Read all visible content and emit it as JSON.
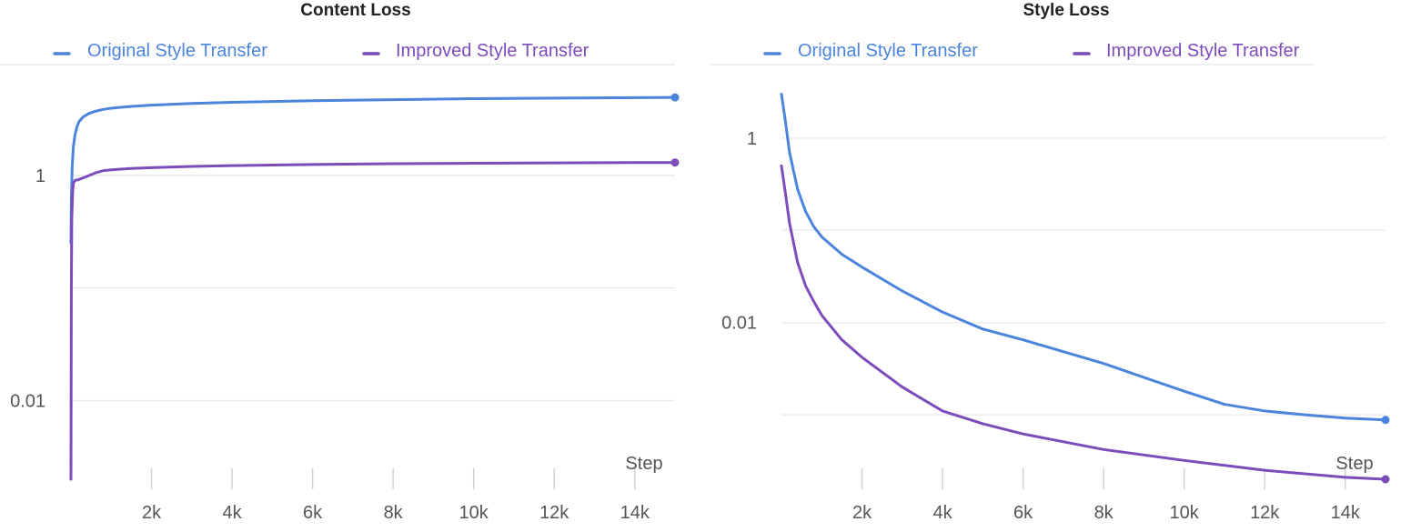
{
  "chart_data": [
    {
      "type": "line",
      "title": "Content Loss",
      "xlabel": "Step",
      "ylabel": "",
      "yscale": "log",
      "xlim": [
        0,
        15000
      ],
      "ylim": [
        0.002,
        8
      ],
      "x_ticks": [
        2000,
        4000,
        6000,
        8000,
        10000,
        12000,
        14000
      ],
      "x_tick_labels": [
        "2k",
        "4k",
        "6k",
        "8k",
        "10k",
        "12k",
        "14k"
      ],
      "y_ticks": [
        0.01,
        1
      ],
      "y_tick_labels": [
        "0.01",
        "1"
      ],
      "y_grid": [
        0.01,
        0.1,
        1
      ],
      "grid": true,
      "legend_position": "top",
      "series": [
        {
          "name": "Original Style Transfer",
          "color": "#4a84dc",
          "x": [
            0,
            10,
            30,
            60,
            100,
            150,
            200,
            300,
            450,
            600,
            800,
            1000,
            1500,
            2000,
            3000,
            4000,
            6000,
            8000,
            10000,
            12000,
            14000,
            15000
          ],
          "y": [
            0.25,
            0.6,
            1.2,
            1.8,
            2.3,
            2.7,
            3.0,
            3.3,
            3.55,
            3.7,
            3.85,
            3.95,
            4.1,
            4.2,
            4.35,
            4.45,
            4.6,
            4.7,
            4.8,
            4.85,
            4.9,
            4.92
          ]
        },
        {
          "name": "Improved Style Transfer",
          "color": "#7c4cba",
          "x": [
            0,
            10,
            20,
            40,
            60,
            100,
            200,
            400,
            600,
            800,
            1000,
            1500,
            2000,
            3000,
            4000,
            6000,
            8000,
            10000,
            12000,
            14000,
            15000
          ],
          "y": [
            0.002,
            0.1,
            0.4,
            0.7,
            0.85,
            0.9,
            0.92,
            0.98,
            1.05,
            1.1,
            1.12,
            1.15,
            1.17,
            1.2,
            1.22,
            1.25,
            1.27,
            1.28,
            1.29,
            1.3,
            1.3
          ]
        }
      ]
    },
    {
      "type": "line",
      "title": "Style Loss",
      "xlabel": "Step",
      "ylabel": "",
      "yscale": "log",
      "xlim": [
        0,
        15000
      ],
      "ylim": [
        0.0002,
        5
      ],
      "x_ticks": [
        2000,
        4000,
        6000,
        8000,
        10000,
        12000,
        14000
      ],
      "x_tick_labels": [
        "2k",
        "4k",
        "6k",
        "8k",
        "10k",
        "12k",
        "14k"
      ],
      "y_ticks": [
        0.01,
        1
      ],
      "y_tick_labels": [
        "0.01",
        "1"
      ],
      "y_grid": [
        0.001,
        0.01,
        0.1,
        1
      ],
      "grid": true,
      "legend_position": "top",
      "series": [
        {
          "name": "Original Style Transfer",
          "color": "#4a84dc",
          "x": [
            0,
            100,
            200,
            400,
            600,
            800,
            1000,
            1500,
            2000,
            3000,
            4000,
            5000,
            6000,
            8000,
            10000,
            11000,
            12000,
            13000,
            14000,
            15000
          ],
          "y": [
            3.0,
            1.5,
            0.7,
            0.28,
            0.16,
            0.11,
            0.085,
            0.055,
            0.04,
            0.022,
            0.013,
            0.0085,
            0.0065,
            0.0036,
            0.0018,
            0.0013,
            0.0011,
            0.001,
            0.00092,
            0.00088
          ]
        },
        {
          "name": "Improved Style Transfer",
          "color": "#7c4cba",
          "x": [
            0,
            100,
            200,
            400,
            600,
            800,
            1000,
            1500,
            2000,
            3000,
            4000,
            5000,
            6000,
            8000,
            10000,
            12000,
            14000,
            15000
          ],
          "y": [
            0.5,
            0.25,
            0.12,
            0.045,
            0.025,
            0.017,
            0.012,
            0.0065,
            0.0042,
            0.002,
            0.0011,
            0.0008,
            0.00062,
            0.00042,
            0.00032,
            0.00025,
            0.00021,
            0.0002
          ]
        }
      ]
    }
  ]
}
